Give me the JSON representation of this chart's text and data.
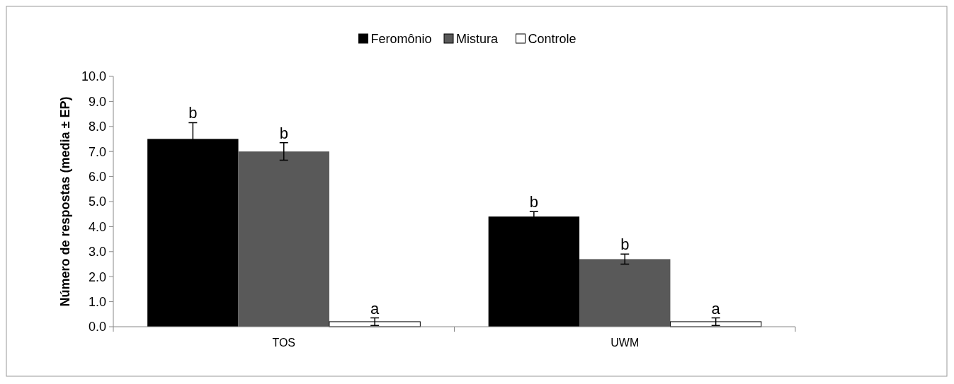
{
  "chart_data": {
    "type": "bar",
    "ylabel": "Número de respostas (media ± EP)",
    "categories": [
      "TOS",
      "UWM"
    ],
    "series": [
      {
        "name": "Feromônio",
        "color": "#000000",
        "values": [
          7.5,
          4.4
        ],
        "errors": [
          0.65,
          0.2
        ]
      },
      {
        "name": "Mistura",
        "color": "#595959",
        "values": [
          7.0,
          2.7
        ],
        "errors": [
          0.35,
          0.2
        ]
      },
      {
        "name": "Controle",
        "color": "#ffffff",
        "values": [
          0.2,
          0.2
        ],
        "errors": [
          0.15,
          0.15
        ]
      }
    ],
    "ylim": [
      0,
      10
    ],
    "yticks": [
      {
        "value": 0,
        "label": "0.0"
      },
      {
        "value": 1,
        "label": "1.0"
      },
      {
        "value": 2,
        "label": "2.0"
      },
      {
        "value": 3,
        "label": "3.0"
      },
      {
        "value": 4,
        "label": "4.0"
      },
      {
        "value": 5,
        "label": "5.0"
      },
      {
        "value": 6,
        "label": "6.0"
      },
      {
        "value": 7,
        "label": "7.0"
      },
      {
        "value": 8,
        "label": "8.0"
      },
      {
        "value": 9,
        "label": "9.0"
      },
      {
        "value": 10,
        "label": "10.0"
      }
    ],
    "grid": false,
    "legend": "top",
    "annotations": [
      "b",
      "b",
      "a",
      "b",
      "b",
      "a"
    ]
  }
}
